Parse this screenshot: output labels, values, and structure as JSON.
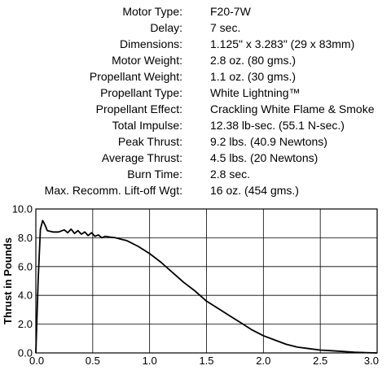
{
  "specs": [
    {
      "label": "Motor Type:",
      "value": "F20-7W"
    },
    {
      "label": "Delay:",
      "value": "7 sec."
    },
    {
      "label": "Dimensions:",
      "value": "1.125\" x 3.283\" (29 x 83mm)"
    },
    {
      "label": "Motor Weight:",
      "value": "2.8 oz. (80 gms.)"
    },
    {
      "label": "Propellant Weight:",
      "value": "1.1 oz. (30 gms.)"
    },
    {
      "label": "Propellant Type:",
      "value": "White Lightning™"
    },
    {
      "label": "Propellant Effect:",
      "value": "Crackling White Flame & Smoke"
    },
    {
      "label": "Total  Impulse:",
      "value": "12.38 lb-sec. (55.1 N-sec.)"
    },
    {
      "label": "Peak Thrust:",
      "value": "9.2 lbs. (40.9 Newtons)"
    },
    {
      "label": "Average Thrust:",
      "value": "4.5 lbs. (20 Newtons)"
    },
    {
      "label": "Burn Time:",
      "value": "2.8 sec."
    },
    {
      "label": "Max. Recomm. Lift-off Wgt:",
      "value": "16 oz. (454 gms.)"
    }
  ],
  "chart_data": {
    "type": "line",
    "title": "",
    "xlabel": "",
    "ylabel": "Thrust in Pounds",
    "xlim": [
      0,
      3.0
    ],
    "ylim": [
      0,
      10.0
    ],
    "x_ticks": [
      "0.0",
      "0.5",
      "1.0",
      "1.5",
      "2.0",
      "2.5",
      "3.0"
    ],
    "y_ticks": [
      "0.0",
      "2.0",
      "4.0",
      "6.0",
      "8.0",
      "10.0"
    ],
    "grid": true,
    "line_color": "#000000",
    "series": [
      {
        "x": [
          0.0,
          0.02,
          0.04,
          0.06,
          0.08,
          0.1,
          0.15,
          0.2,
          0.25,
          0.28,
          0.31,
          0.34,
          0.37,
          0.4,
          0.43,
          0.46,
          0.49,
          0.52,
          0.55,
          0.58,
          0.61,
          0.65,
          0.7,
          0.75,
          0.8,
          0.9,
          1.0,
          1.1,
          1.2,
          1.3,
          1.4,
          1.5,
          1.6,
          1.7,
          1.8,
          1.9,
          2.0,
          2.1,
          2.2,
          2.3,
          2.4,
          2.5,
          2.6,
          2.7,
          2.8,
          2.9,
          3.0
        ],
        "y": [
          0.0,
          5.0,
          8.6,
          9.2,
          8.9,
          8.5,
          8.4,
          8.4,
          8.55,
          8.35,
          8.6,
          8.3,
          8.5,
          8.25,
          8.4,
          8.15,
          8.35,
          8.1,
          8.2,
          8.0,
          8.1,
          8.05,
          8.0,
          7.9,
          7.8,
          7.4,
          6.9,
          6.3,
          5.6,
          4.9,
          4.3,
          3.6,
          3.1,
          2.6,
          2.1,
          1.6,
          1.2,
          0.9,
          0.6,
          0.4,
          0.3,
          0.2,
          0.15,
          0.1,
          0.05,
          0.02,
          0.0
        ]
      }
    ]
  }
}
